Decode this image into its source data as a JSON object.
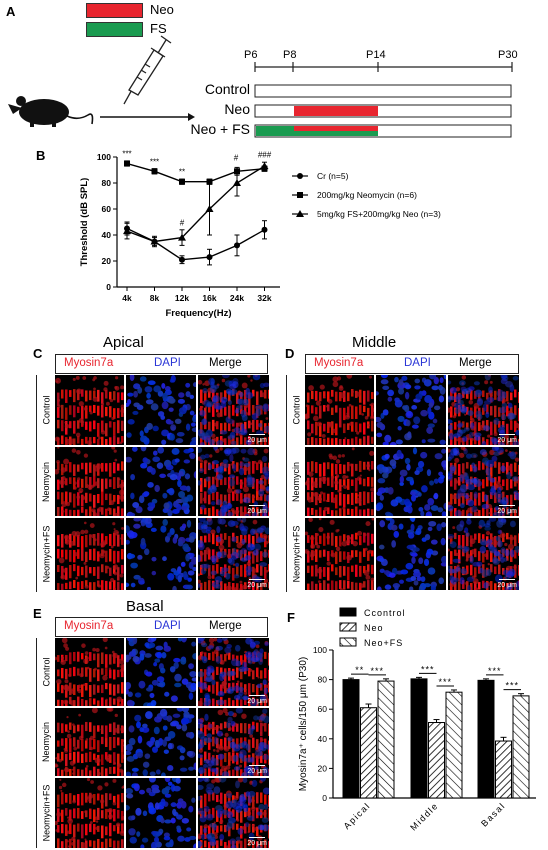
{
  "panels": {
    "a": "A",
    "b": "B",
    "c": "C",
    "d": "D",
    "e": "E",
    "f": "F"
  },
  "colors": {
    "neo": "#e8252f",
    "fs": "#1a9b50",
    "myosin": "#ff2a2a",
    "dapi": "#2a35d6"
  },
  "panel_a": {
    "legend": [
      {
        "label": "Neo",
        "color": "#e8252f"
      },
      {
        "label": "FS",
        "color": "#1a9b50"
      }
    ],
    "timeline_ticks": [
      "P6",
      "P8",
      "P14",
      "P30"
    ],
    "rows": [
      "Control",
      "Neo",
      "Neo + FS"
    ]
  },
  "images": {
    "apical_title": "Apical",
    "middle_title": "Middle",
    "basal_title": "Basal",
    "headers": {
      "myosin": "Myosin7a",
      "dapi": "DAPI",
      "merge": "Merge"
    },
    "row_labels": [
      "Control",
      "Neomycin",
      "Neomycin+FS"
    ],
    "scale_bar": "20 μm"
  },
  "chart_data": [
    {
      "type": "line",
      "xlabel": "Frequency(Hz)",
      "ylabel": "Threshold (dB SPL)",
      "categories": [
        "4k",
        "8k",
        "12k",
        "16k",
        "24k",
        "32k"
      ],
      "ylim": [
        0,
        100
      ],
      "yticks": [
        0,
        20,
        40,
        60,
        80,
        100
      ],
      "legend_position": "right",
      "series": [
        {
          "name": "Cr (n=5)",
          "marker": "circle",
          "values": [
            45,
            35,
            21,
            23,
            32,
            44
          ],
          "errors": [
            5,
            3,
            3,
            6,
            8,
            7
          ]
        },
        {
          "name": "200mg/kg Neomycin (n=6)",
          "marker": "square",
          "values": [
            95,
            89,
            81,
            81,
            89,
            91
          ],
          "errors": [
            2,
            2,
            2,
            2,
            3,
            2
          ]
        },
        {
          "name": "5mg/kg FS+200mg/kg Neo (n=3)",
          "marker": "triangle",
          "values": [
            43,
            35,
            38,
            60,
            80,
            93
          ],
          "errors": [
            6,
            4,
            6,
            20,
            10,
            3
          ]
        }
      ],
      "annotations": [
        {
          "x": "4k",
          "text": "***"
        },
        {
          "x": "8k",
          "text": "***"
        },
        {
          "x": "12k",
          "text": "**"
        },
        {
          "x": "12k",
          "text": "#"
        },
        {
          "x": "24k",
          "text": "#"
        },
        {
          "x": "24k",
          "text": "#"
        },
        {
          "x": "32k",
          "text": "###"
        }
      ]
    },
    {
      "type": "bar",
      "ylabel": "Myosin7a⁺ cells/150 μm (P30)",
      "categories": [
        "Apical",
        "Middle",
        "Basal"
      ],
      "ylim": [
        0,
        100
      ],
      "yticks": [
        0,
        20,
        40,
        60,
        80,
        100
      ],
      "legend_position": "top",
      "series": [
        {
          "name": "Ccontrol",
          "fill": "solid",
          "values": [
            80,
            80.5,
            79.5
          ],
          "errors": [
            1,
            1,
            1
          ]
        },
        {
          "name": "Neo",
          "fill": "hatch",
          "values": [
            61,
            51,
            38.5
          ],
          "errors": [
            2.5,
            2,
            2.5
          ]
        },
        {
          "name": "Neo+FS",
          "fill": "backhatch",
          "values": [
            79,
            71.5,
            69
          ],
          "errors": [
            1.5,
            1.5,
            1.5
          ]
        }
      ],
      "annotations": [
        {
          "text": "**",
          "pair": "Apical Ccontrol-Neo"
        },
        {
          "text": "***",
          "pair": "Apical Neo-Neo+FS"
        },
        {
          "text": "***",
          "pair": "Middle Ccontrol-Neo"
        },
        {
          "text": "***",
          "pair": "Middle Neo-Neo+FS"
        },
        {
          "text": "***",
          "pair": "Basal Ccontrol-Neo"
        },
        {
          "text": "***",
          "pair": "Basal Neo-Neo+FS"
        }
      ]
    }
  ]
}
